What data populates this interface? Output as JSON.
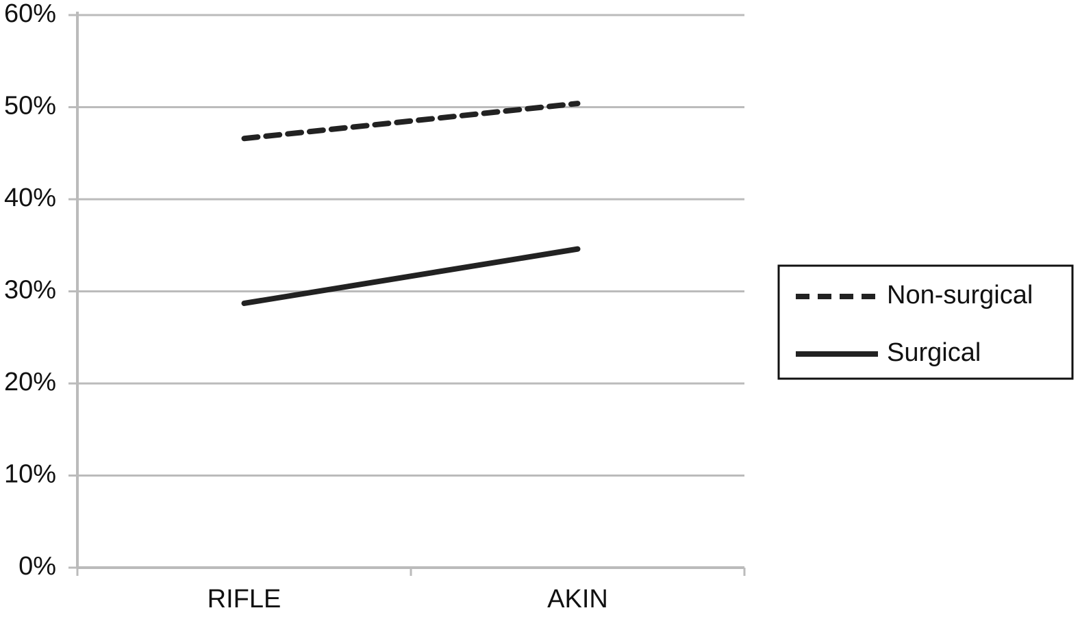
{
  "chart_data": {
    "type": "line",
    "categories": [
      "RIFLE",
      "AKIN"
    ],
    "series": [
      {
        "name": "Non-surgical",
        "color": "#222222",
        "linestyle": "dashed",
        "values": [
          46.6,
          50.4
        ]
      },
      {
        "name": "Surgical",
        "color": "#222222",
        "linestyle": "solid",
        "values": [
          28.7,
          34.6
        ]
      }
    ],
    "ylim": [
      0,
      60
    ],
    "yticks": [
      {
        "value": 0,
        "label": "0%"
      },
      {
        "value": 10,
        "label": "10%"
      },
      {
        "value": 20,
        "label": "20%"
      },
      {
        "value": 30,
        "label": "30%"
      },
      {
        "value": 40,
        "label": "40%"
      },
      {
        "value": 50,
        "label": "50%"
      },
      {
        "value": 60,
        "label": "60%"
      }
    ],
    "grid": true,
    "legend": "right"
  }
}
